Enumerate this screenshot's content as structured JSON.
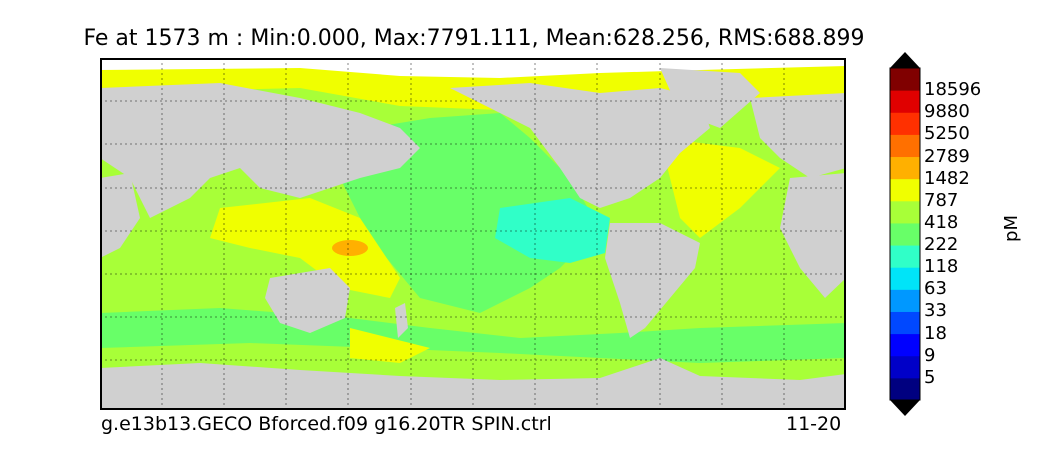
{
  "title": "Fe at 1573 m : Min:0.000, Max:7791.111, Mean:628.256, RMS:688.899",
  "footer": {
    "left": "g.e13b13.GECO Bforced.f09 g16.20TR SPIN.ctrl",
    "right": "11-20"
  },
  "colorbar": {
    "unit": "pM",
    "tick_labels": [
      "18596",
      "9880",
      "5250",
      "2789",
      "1482",
      "787",
      "418",
      "222",
      "118",
      "63",
      "33",
      "18",
      "9",
      "5"
    ],
    "colors": [
      "#000080",
      "#0000c8",
      "#0000ff",
      "#0048ff",
      "#0098ff",
      "#00e4f8",
      "#30ffc8",
      "#68ff68",
      "#a8ff38",
      "#f0ff00",
      "#ffb000",
      "#ff7000",
      "#ff3000",
      "#e00000",
      "#800000"
    ],
    "under_color": "#000000",
    "over_color": "#000000"
  },
  "map_colors": {
    "land": "#d0d0d0",
    "ice": "#ffffff",
    "ocean_default": "#a8ff38"
  }
}
